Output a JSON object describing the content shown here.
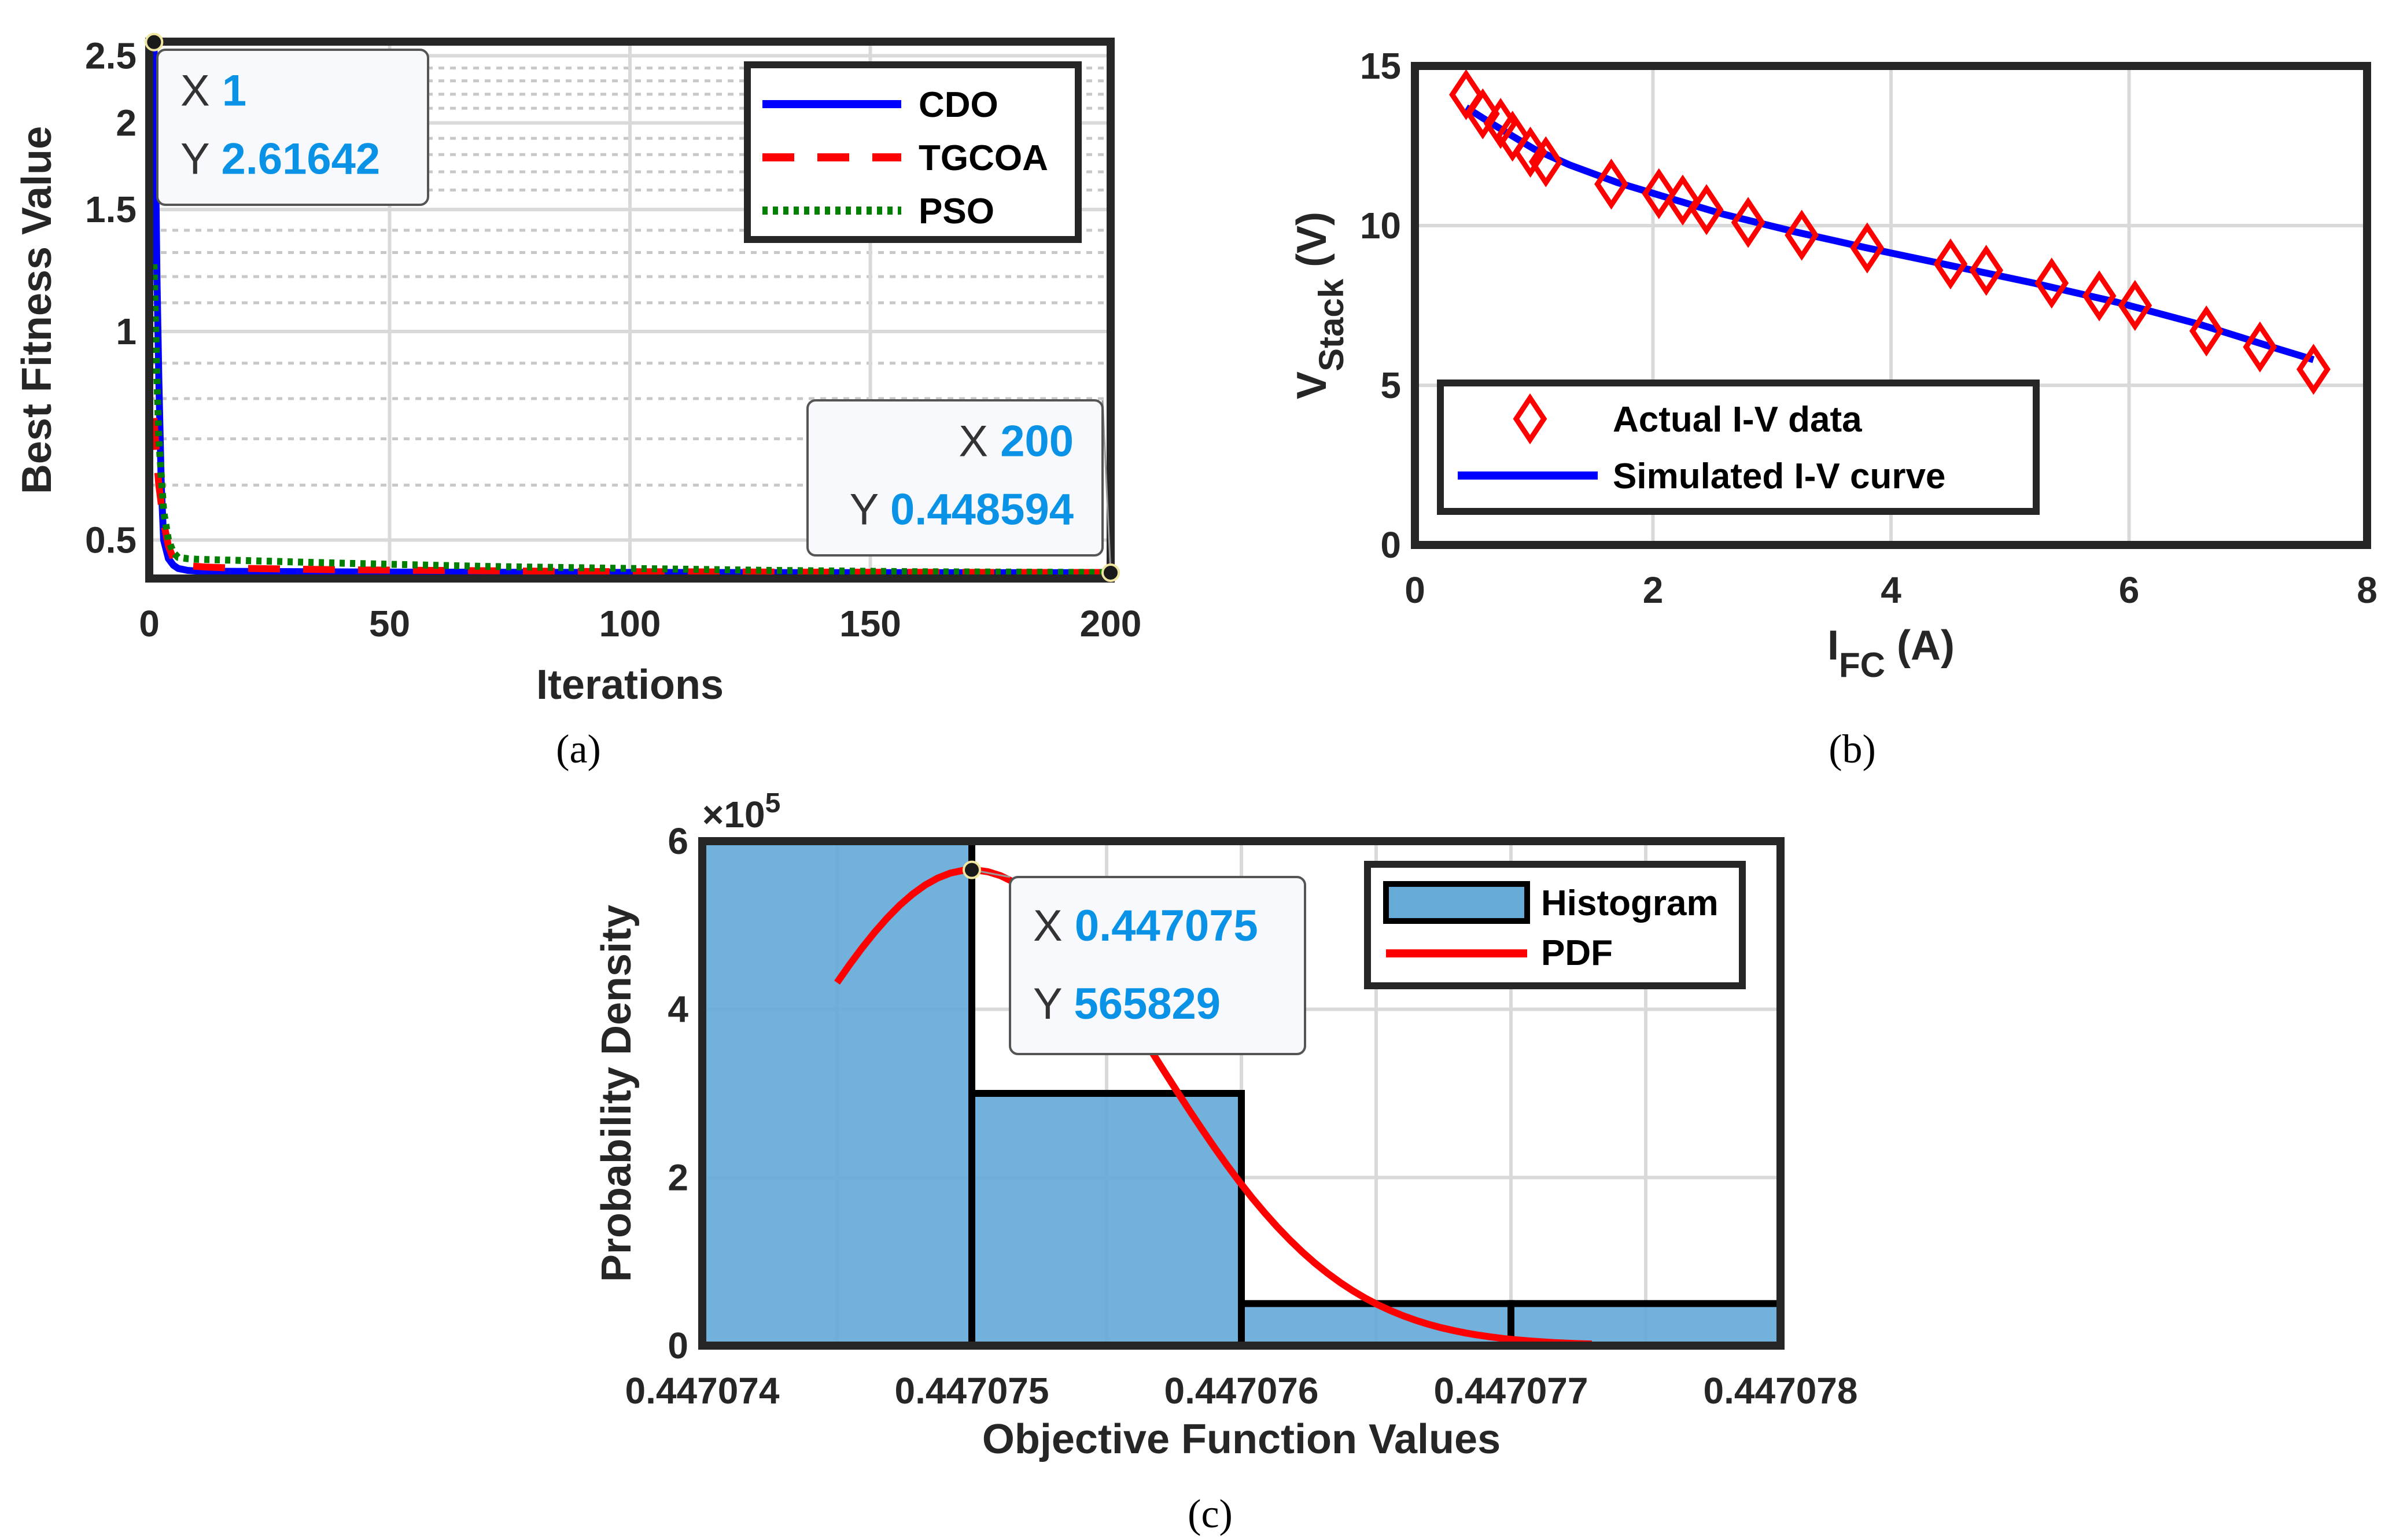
{
  "chart_data": [
    {
      "id": "a",
      "type": "line",
      "yscale": "log",
      "caption": "(a)",
      "xlabel": "Iterations",
      "ylabel": "Best Fitness Value",
      "xlim": [
        0,
        200
      ],
      "ylim": [
        0.44,
        2.62
      ],
      "xticks": [
        0,
        50,
        100,
        150,
        200
      ],
      "yticks": [
        0.5,
        1,
        1.5,
        2,
        2.5
      ],
      "grid": true,
      "legend_position": "top-right",
      "series": [
        {
          "name": "CDO",
          "color": "#0000ff",
          "style": "solid",
          "x": [
            1,
            1.3,
            1.6,
            2,
            2.5,
            3,
            4,
            5,
            6,
            8,
            10,
            20,
            50,
            100,
            150,
            200
          ],
          "y": [
            2.61642,
            1.8,
            1.2,
            0.85,
            0.6,
            0.5,
            0.47,
            0.46,
            0.455,
            0.452,
            0.451,
            0.4505,
            0.4495,
            0.449,
            0.4487,
            0.448594
          ]
        },
        {
          "name": "TGCOA",
          "color": "#ff0000",
          "style": "dashed",
          "x": [
            1,
            1.5,
            2,
            3,
            4,
            5,
            6,
            8,
            12,
            20,
            40,
            60,
            80,
            100,
            150,
            200
          ],
          "y": [
            0.75,
            0.66,
            0.6,
            0.53,
            0.49,
            0.47,
            0.462,
            0.459,
            0.457,
            0.455,
            0.453,
            0.452,
            0.451,
            0.45,
            0.4492,
            0.4488
          ]
        },
        {
          "name": "PSO",
          "color": "#007f00",
          "style": "dotted",
          "x": [
            1,
            1.5,
            2,
            3,
            4,
            5,
            6,
            8,
            10,
            20,
            40,
            70,
            100,
            130,
            160,
            200
          ],
          "y": [
            1.25,
            0.9,
            0.7,
            0.55,
            0.5,
            0.48,
            0.472,
            0.47,
            0.469,
            0.467,
            0.463,
            0.458,
            0.455,
            0.452,
            0.45,
            0.4489
          ]
        }
      ],
      "datatips": [
        {
          "x_label": "X",
          "x_value": "1",
          "y_label": "Y",
          "y_value": "2.61642",
          "x": 1,
          "y": 2.61642
        },
        {
          "x_label": "X",
          "x_value": "200",
          "y_label": "Y",
          "y_value": "0.448594",
          "x": 200,
          "y": 0.448594
        }
      ]
    },
    {
      "id": "b",
      "type": "scatter",
      "caption": "(b)",
      "xlabel": "I",
      "xlabel_sub": "FC",
      "xlabel_unit": " (A)",
      "ylabel": "V",
      "ylabel_sub": "Stack",
      "ylabel_unit": " (V)",
      "xlim": [
        0,
        8
      ],
      "ylim": [
        0,
        15
      ],
      "xticks": [
        0,
        2,
        4,
        6,
        8
      ],
      "yticks": [
        0,
        5,
        10,
        15
      ],
      "grid": true,
      "legend_position": "bottom-left",
      "series": [
        {
          "name": "Actual I-V data",
          "color": "#ff0000",
          "marker": "diamond",
          "x": [
            0.43,
            0.57,
            0.72,
            0.82,
            0.97,
            1.1,
            1.65,
            2.05,
            2.25,
            2.45,
            2.8,
            3.25,
            3.8,
            4.5,
            4.8,
            5.35,
            5.75,
            6.05,
            6.65,
            7.1,
            7.55
          ],
          "y": [
            14.1,
            13.5,
            13.2,
            12.8,
            12.3,
            12.0,
            11.3,
            11.0,
            10.8,
            10.5,
            10.1,
            9.7,
            9.3,
            8.8,
            8.6,
            8.2,
            7.8,
            7.5,
            6.7,
            6.2,
            5.5
          ]
        },
        {
          "name": "Simulated I-V curve",
          "color": "#0000ff",
          "style": "solid",
          "x": [
            0.43,
            0.6,
            0.8,
            1.0,
            1.3,
            1.7,
            2.1,
            2.6,
            3.2,
            3.8,
            4.5,
            5.2,
            5.9,
            6.6,
            7.2,
            7.55
          ],
          "y": [
            13.7,
            13.3,
            12.85,
            12.4,
            11.9,
            11.35,
            10.9,
            10.35,
            9.8,
            9.3,
            8.75,
            8.2,
            7.6,
            6.9,
            6.2,
            5.8
          ]
        }
      ]
    },
    {
      "id": "c",
      "type": "bar",
      "caption": "(c)",
      "xlabel": "Objective Function Values",
      "ylabel": "Probability Density",
      "y_multiplier_base": "×10",
      "y_multiplier_exp": "5",
      "xlim": [
        0.447074,
        0.447078
      ],
      "ylim": [
        0,
        600000
      ],
      "xticks": [
        "0.447074",
        "0.447075",
        "0.447076",
        "0.447077",
        "0.447078"
      ],
      "yticks": [
        0,
        2,
        4,
        6
      ],
      "grid": true,
      "legend_position": "top-right",
      "series": [
        {
          "name": "Histogram",
          "color": "#66aad8",
          "type": "bar",
          "bins": [
            [
              0.447074,
              0.447075
            ],
            [
              0.447075,
              0.447076
            ],
            [
              0.447076,
              0.447077
            ],
            [
              0.447077,
              0.447078
            ]
          ],
          "values": [
            600000,
            300000,
            50000,
            50000
          ]
        },
        {
          "name": "PDF",
          "color": "#ff0000",
          "type": "line",
          "mean": 0.447075,
          "sd": 6.8e-07,
          "peak": 565829,
          "x_start": 0.4470745,
          "x_end": 0.4470773
        }
      ],
      "datatips": [
        {
          "x_label": "X",
          "x_value": "0.447075",
          "y_label": "Y",
          "y_value": "565829",
          "x": 0.447075,
          "y": 565829
        }
      ]
    }
  ]
}
